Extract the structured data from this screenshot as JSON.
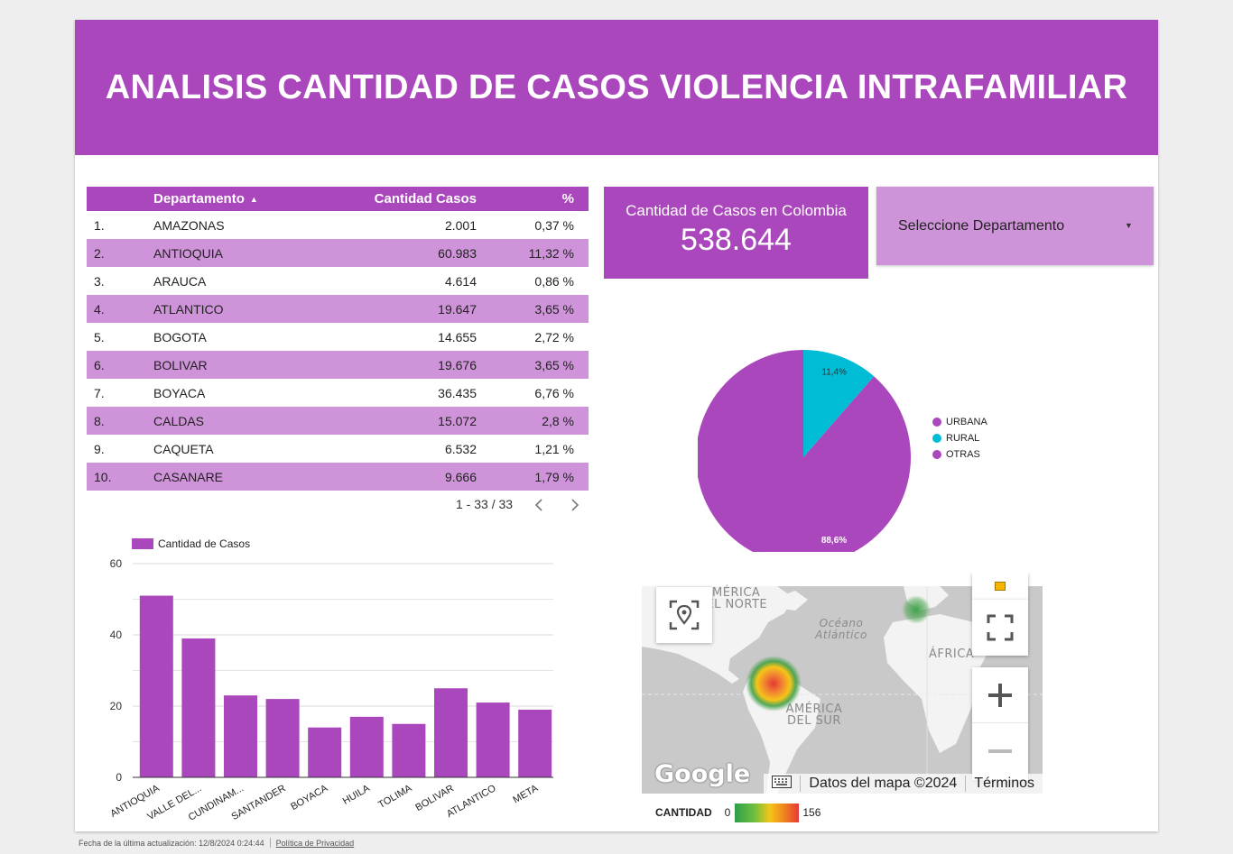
{
  "header": {
    "title": "ANALISIS CANTIDAD DE CASOS VIOLENCIA INTRAFAMILIAR"
  },
  "table": {
    "columns": [
      "Departamento",
      "Cantidad Casos",
      "%"
    ],
    "rows": [
      {
        "idx": "1.",
        "dep": "AMAZONAS",
        "cnt": "2.001",
        "pct": "0,37 %"
      },
      {
        "idx": "2.",
        "dep": "ANTIOQUIA",
        "cnt": "60.983",
        "pct": "11,32 %"
      },
      {
        "idx": "3.",
        "dep": "ARAUCA",
        "cnt": "4.614",
        "pct": "0,86 %"
      },
      {
        "idx": "4.",
        "dep": "ATLANTICO",
        "cnt": "19.647",
        "pct": "3,65 %"
      },
      {
        "idx": "5.",
        "dep": "BOGOTA",
        "cnt": "14.655",
        "pct": "2,72 %"
      },
      {
        "idx": "6.",
        "dep": "BOLIVAR",
        "cnt": "19.676",
        "pct": "3,65 %"
      },
      {
        "idx": "7.",
        "dep": "BOYACA",
        "cnt": "36.435",
        "pct": "6,76 %"
      },
      {
        "idx": "8.",
        "dep": "CALDAS",
        "cnt": "15.072",
        "pct": "2,8 %"
      },
      {
        "idx": "9.",
        "dep": "CAQUETA",
        "cnt": "6.532",
        "pct": "1,21 %"
      },
      {
        "idx": "10.",
        "dep": "CASANARE",
        "cnt": "9.666",
        "pct": "1,79 %"
      }
    ],
    "pagination": "1 - 33 / 33"
  },
  "scorecard": {
    "label": "Cantidad de Casos en Colombia",
    "value": "538.644"
  },
  "selector": {
    "label": "Seleccione Departamento"
  },
  "map": {
    "labels": [
      "AMÉRICA DEL NORTE",
      "Océano Atlántico",
      "ÁFRICA",
      "AMÉRICA DEL SUR"
    ],
    "logo": "Google",
    "attribution": "Datos del mapa ©2024",
    "terms": "Términos",
    "legend": {
      "title": "CANTIDAD",
      "min": "0",
      "max": "156"
    }
  },
  "footer": {
    "updated": "Fecha de la última actualización: 12/8/2024 0:24:44",
    "privacy": "Política de Privacidad"
  },
  "chart_data": [
    {
      "type": "pie",
      "categories": [
        "URBANA",
        "RURAL",
        "OTRAS"
      ],
      "values": [
        88.6,
        11.4,
        0
      ],
      "value_labels": [
        "88,6%",
        "11,4%",
        ""
      ],
      "colors": [
        "#ab47bc",
        "#00bcd4",
        "#ab47bc"
      ],
      "legend": "right"
    },
    {
      "type": "bar",
      "categories": [
        "ANTIOQUIA",
        "VALLE DEL...",
        "CUNDINAM...",
        "SANTANDER",
        "BOYACA",
        "HUILA",
        "TOLIMA",
        "BOLIVAR",
        "ATLANTICO",
        "META"
      ],
      "series": [
        {
          "name": "Cantidad de Casos",
          "values": [
            51,
            39,
            23,
            22,
            14,
            17,
            15,
            25,
            21,
            19
          ],
          "color": "#ab47bc"
        }
      ],
      "yticks": [
        "0",
        "20",
        "40",
        "60"
      ],
      "ylim": [
        0,
        60
      ],
      "grid": true,
      "legend": "top-left"
    }
  ]
}
